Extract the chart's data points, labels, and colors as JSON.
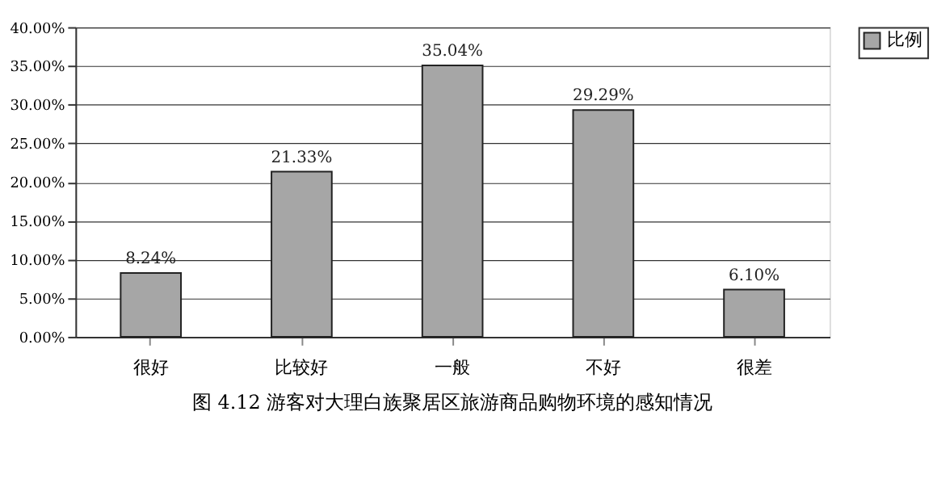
{
  "chart_data": {
    "type": "bar",
    "title": "图 4.12  游客对大理白族聚居区旅游商品购物环境的感知情况",
    "categories": [
      "很好",
      "比较好",
      "一般",
      "不好",
      "很差"
    ],
    "series": [
      {
        "name": "比例",
        "color": "#a6a6a6",
        "values": [
          8.24,
          21.33,
          35.04,
          29.29,
          6.1
        ],
        "value_labels": [
          "8.24%",
          "21.33%",
          "35.04%",
          "29.29%",
          "6.10%"
        ]
      }
    ],
    "ylim": [
      0,
      40
    ],
    "yticks": [
      {
        "value": 0,
        "label": "0.00%"
      },
      {
        "value": 5,
        "label": "5.00%"
      },
      {
        "value": 10,
        "label": "10.00%"
      },
      {
        "value": 15,
        "label": "15.00%"
      },
      {
        "value": 20,
        "label": "20.00%"
      },
      {
        "value": 25,
        "label": "25.00%"
      },
      {
        "value": 30,
        "label": "30.00%"
      },
      {
        "value": 35,
        "label": "35.00%"
      },
      {
        "value": 40,
        "label": "40.00%"
      }
    ],
    "grid": "y",
    "legend": "right"
  }
}
